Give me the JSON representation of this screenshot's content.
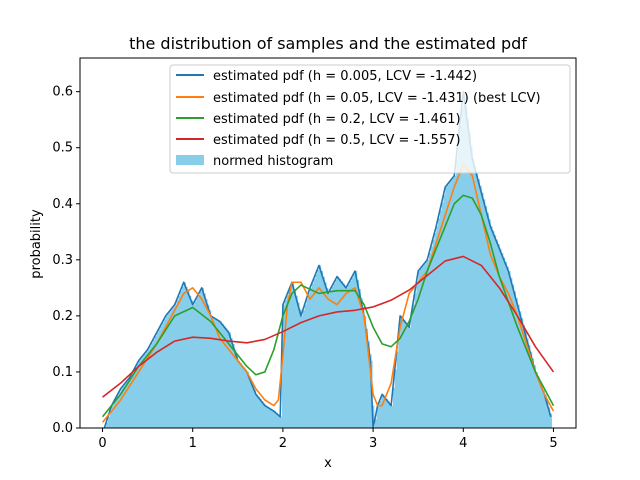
{
  "chart_data": {
    "type": "line",
    "title": "the distribution of samples and the estimated pdf",
    "xlabel": "x",
    "ylabel": "probability",
    "xlim": [
      -0.25,
      5.25
    ],
    "ylim": [
      0,
      0.66
    ],
    "xticks": [
      0,
      1,
      2,
      3,
      4,
      5
    ],
    "yticks": [
      0.0,
      0.1,
      0.2,
      0.3,
      0.4,
      0.5,
      0.6
    ],
    "legend_position": "top-right",
    "series": [
      {
        "name": "estimated pdf (h = 0.005, LCV = -1.442)",
        "color": "#1f77b4",
        "x": [
          0.02,
          0.1,
          0.2,
          0.3,
          0.4,
          0.5,
          0.6,
          0.7,
          0.8,
          0.9,
          1.0,
          1.1,
          1.2,
          1.3,
          1.4,
          1.5,
          1.6,
          1.7,
          1.8,
          1.9,
          1.97,
          2.0,
          2.1,
          2.2,
          2.3,
          2.4,
          2.5,
          2.6,
          2.7,
          2.8,
          2.9,
          2.97,
          3.0,
          3.05,
          3.1,
          3.2,
          3.3,
          3.4,
          3.5,
          3.6,
          3.7,
          3.8,
          3.9,
          4.0,
          4.1,
          4.2,
          4.3,
          4.4,
          4.5,
          4.6,
          4.7,
          4.8,
          4.9,
          4.97
        ],
        "y": [
          0.0,
          0.04,
          0.07,
          0.09,
          0.12,
          0.14,
          0.17,
          0.2,
          0.22,
          0.26,
          0.22,
          0.25,
          0.2,
          0.19,
          0.17,
          0.12,
          0.1,
          0.06,
          0.04,
          0.03,
          0.02,
          0.22,
          0.26,
          0.2,
          0.25,
          0.29,
          0.24,
          0.27,
          0.25,
          0.28,
          0.2,
          0.12,
          0.0,
          0.04,
          0.06,
          0.04,
          0.2,
          0.18,
          0.28,
          0.3,
          0.36,
          0.43,
          0.45,
          0.6,
          0.48,
          0.42,
          0.36,
          0.32,
          0.28,
          0.22,
          0.16,
          0.1,
          0.06,
          0.02
        ]
      },
      {
        "name": "estimated pdf (h = 0.05, LCV = -1.431) (best LCV)",
        "color": "#ff7f0e",
        "x": [
          0.0,
          0.2,
          0.4,
          0.6,
          0.8,
          0.9,
          1.0,
          1.1,
          1.2,
          1.3,
          1.4,
          1.5,
          1.6,
          1.7,
          1.8,
          1.9,
          1.95,
          2.0,
          2.05,
          2.1,
          2.2,
          2.3,
          2.4,
          2.5,
          2.6,
          2.7,
          2.8,
          2.9,
          2.95,
          3.0,
          3.05,
          3.1,
          3.2,
          3.3,
          3.4,
          3.5,
          3.6,
          3.7,
          3.8,
          3.9,
          4.0,
          4.1,
          4.2,
          4.3,
          4.4,
          4.5,
          4.6,
          4.7,
          4.8,
          4.9,
          5.0
        ],
        "y": [
          0.01,
          0.05,
          0.1,
          0.15,
          0.21,
          0.24,
          0.25,
          0.23,
          0.2,
          0.16,
          0.14,
          0.12,
          0.1,
          0.07,
          0.05,
          0.04,
          0.05,
          0.13,
          0.22,
          0.26,
          0.26,
          0.23,
          0.25,
          0.23,
          0.22,
          0.24,
          0.25,
          0.2,
          0.13,
          0.06,
          0.04,
          0.04,
          0.08,
          0.18,
          0.24,
          0.26,
          0.28,
          0.33,
          0.38,
          0.43,
          0.47,
          0.45,
          0.38,
          0.31,
          0.27,
          0.24,
          0.2,
          0.15,
          0.1,
          0.06,
          0.03
        ]
      },
      {
        "name": "estimated pdf (h = 0.2, LCV = -1.461)",
        "color": "#2ca02c",
        "x": [
          0.0,
          0.2,
          0.4,
          0.6,
          0.8,
          1.0,
          1.2,
          1.4,
          1.6,
          1.7,
          1.8,
          1.9,
          2.0,
          2.1,
          2.2,
          2.4,
          2.6,
          2.8,
          2.9,
          3.0,
          3.1,
          3.2,
          3.3,
          3.4,
          3.5,
          3.6,
          3.7,
          3.8,
          3.9,
          4.0,
          4.1,
          4.2,
          4.3,
          4.4,
          4.6,
          4.8,
          5.0
        ],
        "y": [
          0.02,
          0.06,
          0.11,
          0.15,
          0.2,
          0.215,
          0.19,
          0.15,
          0.11,
          0.095,
          0.1,
          0.14,
          0.2,
          0.24,
          0.255,
          0.24,
          0.245,
          0.245,
          0.22,
          0.18,
          0.15,
          0.145,
          0.16,
          0.19,
          0.23,
          0.28,
          0.32,
          0.36,
          0.4,
          0.415,
          0.41,
          0.38,
          0.33,
          0.27,
          0.18,
          0.1,
          0.04
        ]
      },
      {
        "name": "estimated pdf (h = 0.5, LCV = -1.557)",
        "color": "#d62728",
        "x": [
          0.0,
          0.2,
          0.4,
          0.6,
          0.8,
          1.0,
          1.2,
          1.4,
          1.6,
          1.8,
          2.0,
          2.2,
          2.4,
          2.6,
          2.8,
          3.0,
          3.2,
          3.4,
          3.6,
          3.8,
          4.0,
          4.2,
          4.4,
          4.6,
          4.8,
          5.0
        ],
        "y": [
          0.055,
          0.08,
          0.11,
          0.135,
          0.155,
          0.162,
          0.16,
          0.155,
          0.152,
          0.158,
          0.172,
          0.188,
          0.2,
          0.207,
          0.21,
          0.216,
          0.228,
          0.246,
          0.272,
          0.298,
          0.306,
          0.29,
          0.25,
          0.2,
          0.145,
          0.1
        ]
      }
    ],
    "histogram": {
      "name": "normed histogram",
      "color": "#87ceeb",
      "x": [
        0.02,
        0.1,
        0.2,
        0.3,
        0.4,
        0.5,
        0.6,
        0.7,
        0.8,
        0.9,
        1.0,
        1.1,
        1.2,
        1.3,
        1.4,
        1.5,
        1.6,
        1.7,
        1.8,
        1.9,
        1.97,
        2.0,
        2.1,
        2.2,
        2.3,
        2.4,
        2.5,
        2.6,
        2.7,
        2.8,
        2.9,
        2.97,
        3.0,
        3.05,
        3.1,
        3.2,
        3.3,
        3.4,
        3.5,
        3.6,
        3.7,
        3.8,
        3.9,
        4.0,
        4.1,
        4.2,
        4.3,
        4.4,
        4.5,
        4.6,
        4.7,
        4.8,
        4.9,
        4.97
      ],
      "y": [
        0.0,
        0.04,
        0.07,
        0.09,
        0.12,
        0.14,
        0.17,
        0.2,
        0.22,
        0.26,
        0.22,
        0.25,
        0.2,
        0.19,
        0.17,
        0.12,
        0.1,
        0.06,
        0.04,
        0.03,
        0.02,
        0.22,
        0.26,
        0.2,
        0.25,
        0.29,
        0.24,
        0.27,
        0.25,
        0.28,
        0.2,
        0.12,
        0.0,
        0.04,
        0.06,
        0.04,
        0.2,
        0.18,
        0.28,
        0.3,
        0.36,
        0.43,
        0.45,
        0.6,
        0.48,
        0.42,
        0.36,
        0.32,
        0.28,
        0.22,
        0.16,
        0.1,
        0.06,
        0.02
      ]
    }
  }
}
